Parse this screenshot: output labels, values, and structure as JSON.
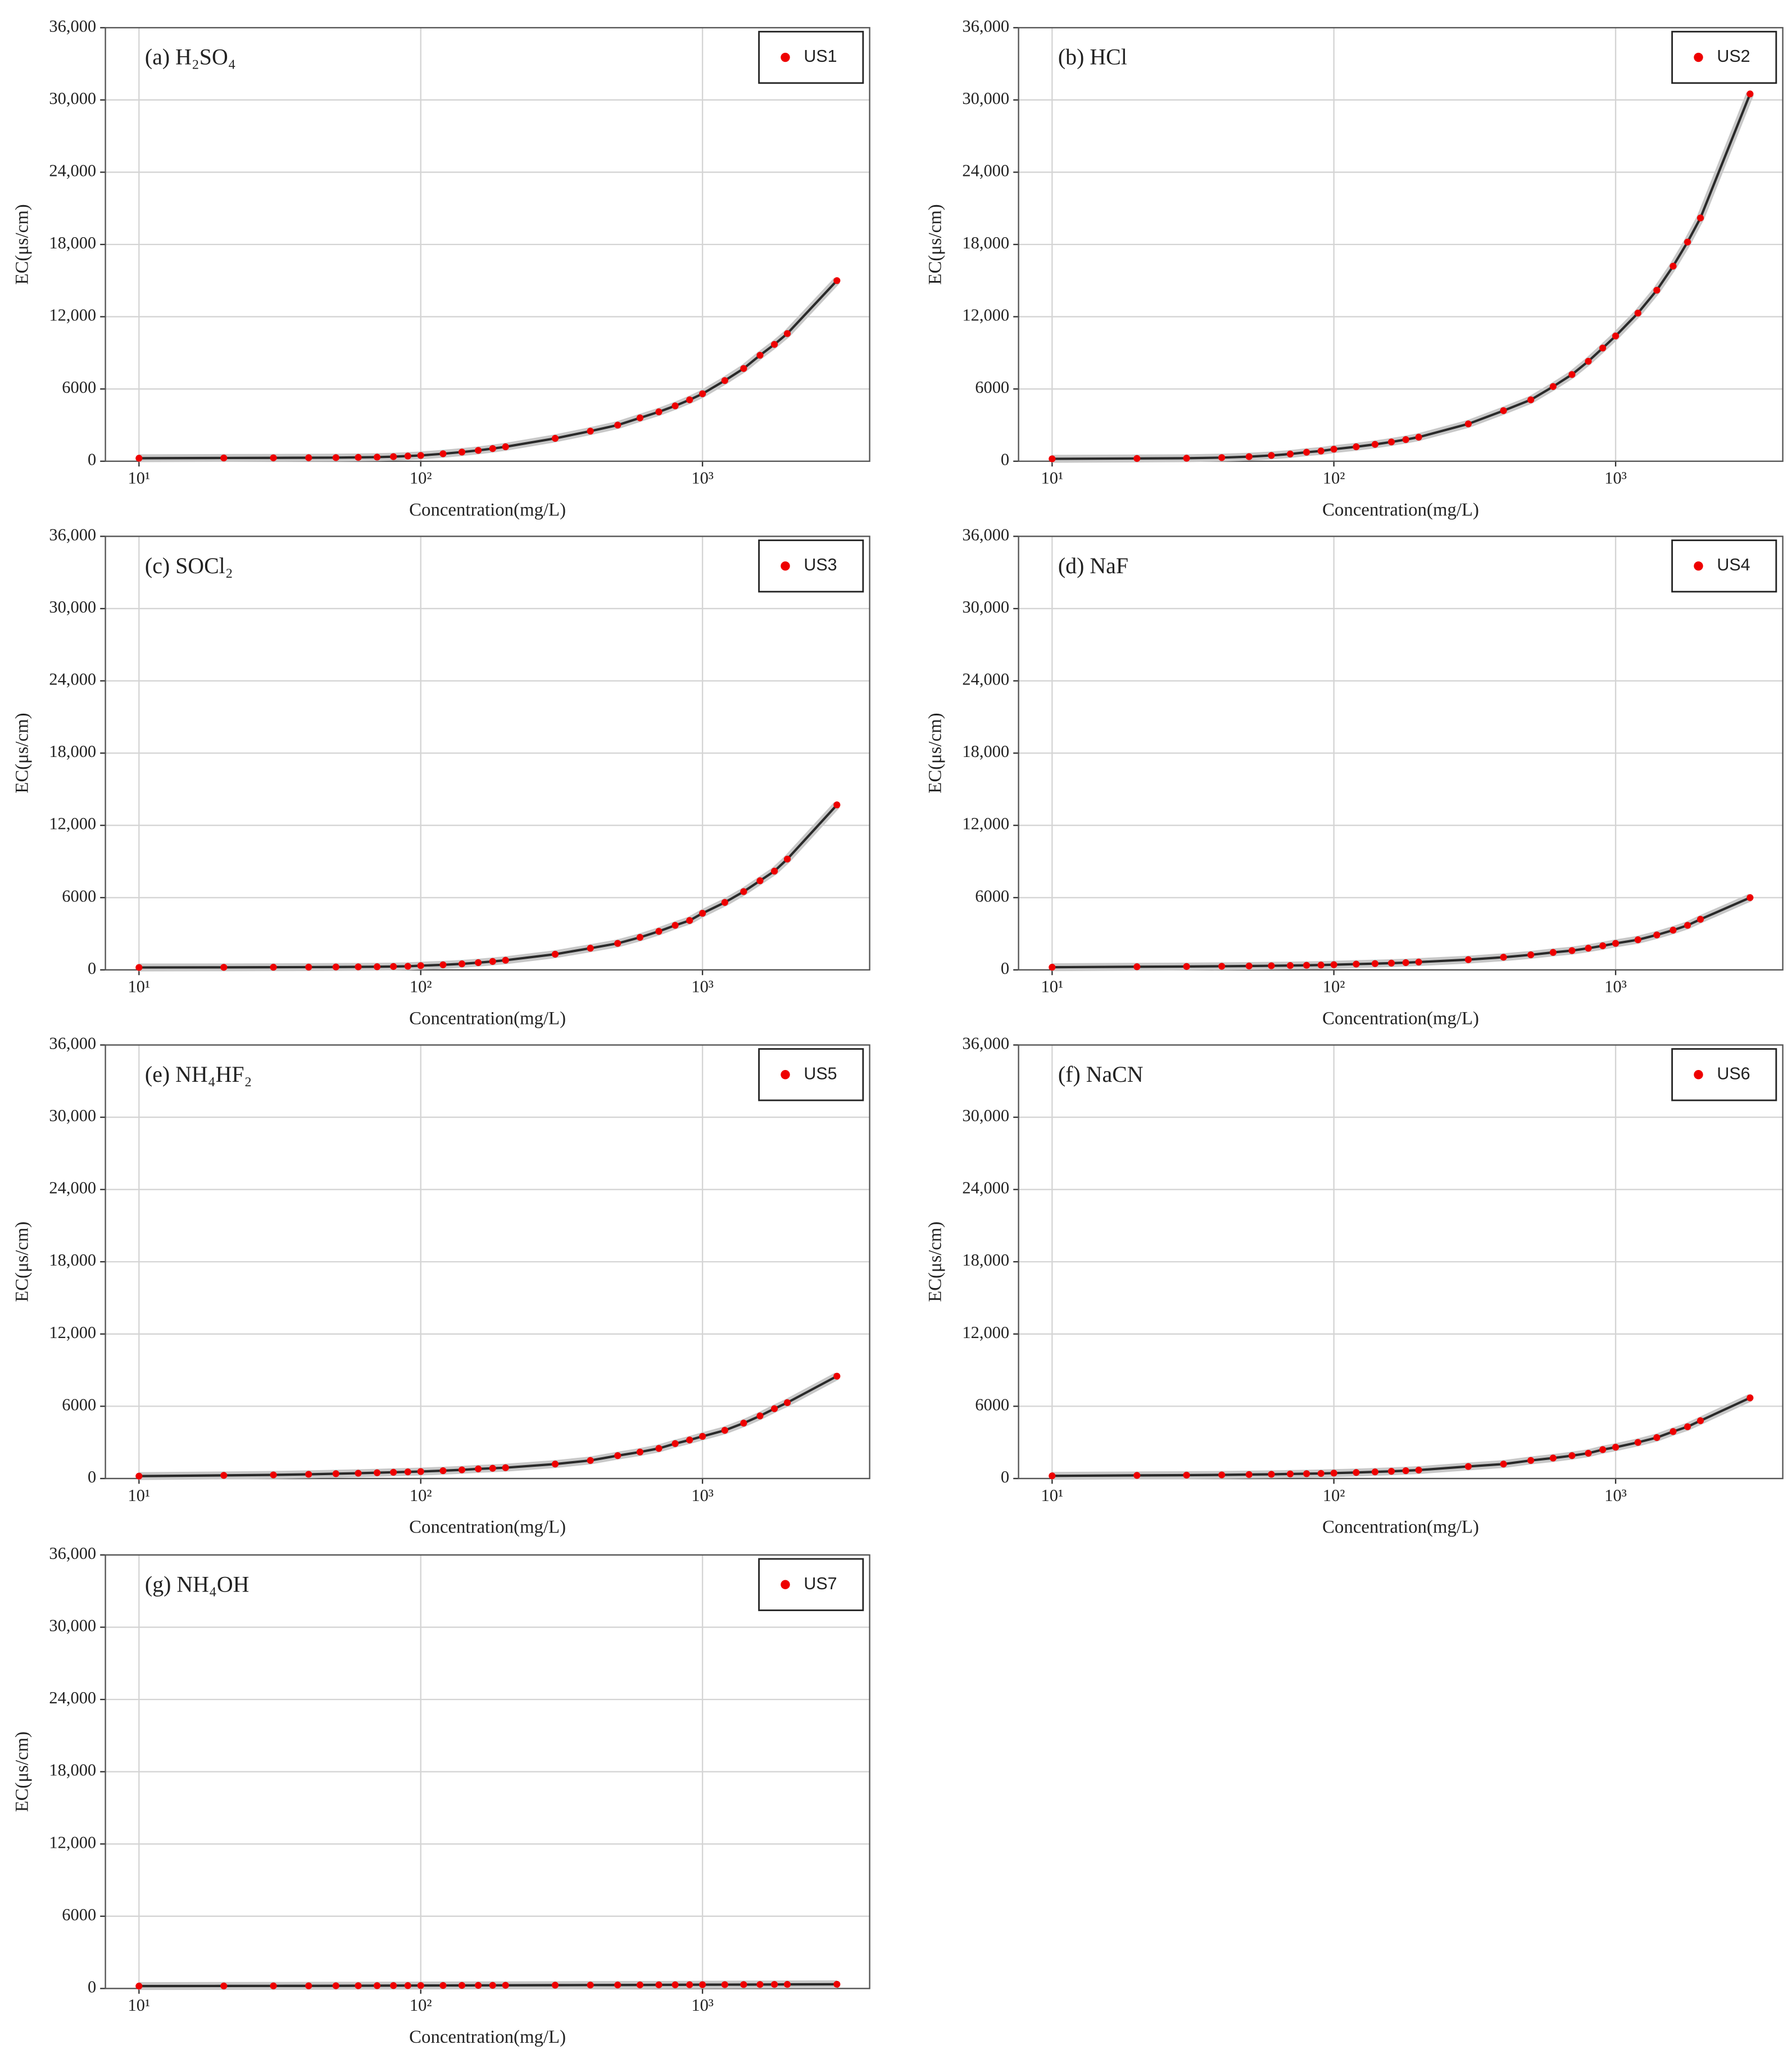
{
  "chart_data": [
    {
      "type": "scatter",
      "title": "(a) H₂SO₄",
      "xlabel": "Concentration(mg/L)",
      "ylabel": "EC(μs/cm)",
      "xscale": "log",
      "grid": true,
      "legend": "upper right",
      "line": true,
      "x": [
        10,
        20,
        30,
        40,
        50,
        60,
        70,
        80,
        90,
        100,
        120,
        140,
        160,
        180,
        200,
        300,
        400,
        500,
        600,
        700,
        800,
        900,
        1000,
        1200,
        1400,
        1600,
        1800,
        2000,
        3000
      ],
      "series": [
        {
          "name": "US1",
          "color": "#ee0000",
          "values": [
            250,
            270,
            280,
            290,
            300,
            320,
            340,
            380,
            430,
            480,
            620,
            760,
            900,
            1050,
            1200,
            1900,
            2500,
            3000,
            3600,
            4100,
            4600,
            5100,
            5600,
            6700,
            7700,
            8800,
            9700,
            10600,
            15000
          ]
        }
      ],
      "xlim": [
        7.6,
        3920
      ],
      "xticks": [
        {
          "value": 10,
          "label": "10¹"
        },
        {
          "value": 100,
          "label": "10²"
        },
        {
          "value": 1000,
          "label": "10³"
        }
      ],
      "ylim": [
        0,
        36000
      ],
      "yticks": [
        0,
        6000,
        {
          "value": 12000,
          "label": "12,000"
        },
        {
          "value": 18000,
          "label": "18,000"
        },
        {
          "value": 24000,
          "label": "24,000"
        },
        {
          "value": 30000,
          "label": "30,000"
        },
        {
          "value": 36000,
          "label": "36,000"
        }
      ]
    },
    {
      "type": "scatter",
      "title": "(b) HCl",
      "xlabel": "Concentration(mg/L)",
      "ylabel": "EC(μs/cm)",
      "xscale": "log",
      "grid": true,
      "legend": "upper right",
      "line": true,
      "x": [
        10,
        20,
        30,
        40,
        50,
        60,
        70,
        80,
        90,
        100,
        120,
        140,
        160,
        180,
        200,
        300,
        400,
        500,
        600,
        700,
        800,
        900,
        1000,
        1200,
        1400,
        1600,
        1800,
        2000,
        3000
      ],
      "series": [
        {
          "name": "US2",
          "color": "#ee0000",
          "values": [
            200,
            230,
            250,
            300,
            380,
            480,
            600,
            750,
            850,
            1000,
            1200,
            1400,
            1600,
            1800,
            2000,
            3100,
            4200,
            5100,
            6200,
            7200,
            8300,
            9400,
            10400,
            12300,
            14200,
            16200,
            18200,
            20200,
            30500
          ]
        }
      ],
      "xlim": [
        7.6,
        3920
      ],
      "xticks": [
        {
          "value": 10,
          "label": "10¹"
        },
        {
          "value": 100,
          "label": "10²"
        },
        {
          "value": 1000,
          "label": "10³"
        }
      ],
      "ylim": [
        0,
        36000
      ],
      "yticks": [
        0,
        6000,
        {
          "value": 12000,
          "label": "12,000"
        },
        {
          "value": 18000,
          "label": "18,000"
        },
        {
          "value": 24000,
          "label": "24,000"
        },
        {
          "value": 30000,
          "label": "30,000"
        },
        {
          "value": 36000,
          "label": "36,000"
        }
      ]
    },
    {
      "type": "scatter",
      "title": "(c) SOCl₂",
      "xlabel": "Concentration(mg/L)",
      "ylabel": "EC(μs/cm)",
      "xscale": "log",
      "grid": true,
      "legend": "upper right",
      "line": true,
      "x": [
        10,
        20,
        30,
        40,
        50,
        60,
        70,
        80,
        90,
        100,
        120,
        140,
        160,
        180,
        200,
        300,
        400,
        500,
        600,
        700,
        800,
        900,
        1000,
        1200,
        1400,
        1600,
        1800,
        2000,
        3000
      ],
      "series": [
        {
          "name": "US3",
          "color": "#ee0000",
          "values": [
            200,
            210,
            220,
            230,
            240,
            250,
            260,
            280,
            300,
            350,
            420,
            500,
            600,
            700,
            800,
            1300,
            1800,
            2200,
            2700,
            3200,
            3700,
            4100,
            4700,
            5600,
            6500,
            7400,
            8200,
            9200,
            13700
          ]
        }
      ],
      "xlim": [
        7.6,
        3920
      ],
      "xticks": [
        {
          "value": 10,
          "label": "10¹"
        },
        {
          "value": 100,
          "label": "10²"
        },
        {
          "value": 1000,
          "label": "10³"
        }
      ],
      "ylim": [
        0,
        36000
      ],
      "yticks": [
        0,
        6000,
        {
          "value": 12000,
          "label": "12,000"
        },
        {
          "value": 18000,
          "label": "18,000"
        },
        {
          "value": 24000,
          "label": "24,000"
        },
        {
          "value": 30000,
          "label": "30,000"
        },
        {
          "value": 36000,
          "label": "36,000"
        }
      ]
    },
    {
      "type": "scatter",
      "title": "(d) NaF",
      "xlabel": "Concentration(mg/L)",
      "ylabel": "EC(μs/cm)",
      "xscale": "log",
      "grid": true,
      "legend": "upper right",
      "line": true,
      "x": [
        10,
        20,
        30,
        40,
        50,
        60,
        70,
        80,
        90,
        100,
        120,
        140,
        160,
        180,
        200,
        300,
        400,
        500,
        600,
        700,
        800,
        900,
        1000,
        1200,
        1400,
        1600,
        1800,
        2000,
        3000
      ],
      "series": [
        {
          "name": "US4",
          "color": "#ee0000",
          "values": [
            220,
            260,
            280,
            300,
            320,
            340,
            360,
            380,
            400,
            430,
            480,
            520,
            560,
            600,
            650,
            850,
            1050,
            1250,
            1450,
            1600,
            1800,
            2000,
            2200,
            2500,
            2900,
            3300,
            3700,
            4200,
            6000
          ]
        }
      ],
      "xlim": [
        7.6,
        3920
      ],
      "xticks": [
        {
          "value": 10,
          "label": "10¹"
        },
        {
          "value": 100,
          "label": "10²"
        },
        {
          "value": 1000,
          "label": "10³"
        }
      ],
      "ylim": [
        0,
        36000
      ],
      "yticks": [
        0,
        6000,
        {
          "value": 12000,
          "label": "12,000"
        },
        {
          "value": 18000,
          "label": "18,000"
        },
        {
          "value": 24000,
          "label": "24,000"
        },
        {
          "value": 30000,
          "label": "30,000"
        },
        {
          "value": 36000,
          "label": "36,000"
        }
      ]
    },
    {
      "type": "scatter",
      "title": "(e) NH₄HF₂",
      "xlabel": "Concentration(mg/L)",
      "ylabel": "EC(μs/cm)",
      "xscale": "log",
      "grid": true,
      "legend": "upper right",
      "line": true,
      "x": [
        10,
        20,
        30,
        40,
        50,
        60,
        70,
        80,
        90,
        100,
        120,
        140,
        160,
        180,
        200,
        300,
        400,
        500,
        600,
        700,
        800,
        900,
        1000,
        1200,
        1400,
        1600,
        1800,
        2000,
        3000
      ],
      "series": [
        {
          "name": "US5",
          "color": "#ee0000",
          "values": [
            200,
            260,
            300,
            350,
            400,
            440,
            480,
            520,
            550,
            580,
            650,
            720,
            800,
            850,
            900,
            1200,
            1500,
            1900,
            2200,
            2500,
            2900,
            3200,
            3500,
            4000,
            4600,
            5200,
            5800,
            6300,
            8500
          ]
        }
      ],
      "xlim": [
        7.6,
        3920
      ],
      "xticks": [
        {
          "value": 10,
          "label": "10¹"
        },
        {
          "value": 100,
          "label": "10²"
        },
        {
          "value": 1000,
          "label": "10³"
        }
      ],
      "ylim": [
        0,
        36000
      ],
      "yticks": [
        0,
        6000,
        {
          "value": 12000,
          "label": "12,000"
        },
        {
          "value": 18000,
          "label": "18,000"
        },
        {
          "value": 24000,
          "label": "24,000"
        },
        {
          "value": 30000,
          "label": "30,000"
        },
        {
          "value": 36000,
          "label": "36,000"
        }
      ]
    },
    {
      "type": "scatter",
      "title": "(f) NaCN",
      "xlabel": "Concentration(mg/L)",
      "ylabel": "EC(μs/cm)",
      "xscale": "log",
      "grid": true,
      "legend": "upper right",
      "line": true,
      "x": [
        10,
        20,
        30,
        40,
        50,
        60,
        70,
        80,
        90,
        100,
        120,
        140,
        160,
        180,
        200,
        300,
        400,
        500,
        600,
        700,
        800,
        900,
        1000,
        1200,
        1400,
        1600,
        1800,
        2000,
        3000
      ],
      "series": [
        {
          "name": "US6",
          "color": "#ee0000",
          "values": [
            220,
            260,
            280,
            300,
            330,
            350,
            380,
            400,
            420,
            450,
            500,
            550,
            600,
            650,
            700,
            1000,
            1200,
            1500,
            1700,
            1900,
            2100,
            2400,
            2600,
            3000,
            3400,
            3900,
            4300,
            4800,
            6700
          ]
        }
      ],
      "xlim": [
        7.6,
        3920
      ],
      "xticks": [
        {
          "value": 10,
          "label": "10¹"
        },
        {
          "value": 100,
          "label": "10²"
        },
        {
          "value": 1000,
          "label": "10³"
        }
      ],
      "ylim": [
        0,
        36000
      ],
      "yticks": [
        0,
        6000,
        {
          "value": 12000,
          "label": "12,000"
        },
        {
          "value": 18000,
          "label": "18,000"
        },
        {
          "value": 24000,
          "label": "24,000"
        },
        {
          "value": 30000,
          "label": "30,000"
        },
        {
          "value": 36000,
          "label": "36,000"
        }
      ]
    },
    {
      "type": "scatter",
      "title": "(g) NH₄OH",
      "xlabel": "Concentration(mg/L)",
      "ylabel": "EC(μs/cm)",
      "xscale": "log",
      "grid": true,
      "legend": "upper right",
      "line": true,
      "x": [
        10,
        20,
        30,
        40,
        50,
        60,
        70,
        80,
        90,
        100,
        120,
        140,
        160,
        180,
        200,
        300,
        400,
        500,
        600,
        700,
        800,
        900,
        1000,
        1200,
        1400,
        1600,
        1800,
        2000,
        3000
      ],
      "series": [
        {
          "name": "US7",
          "color": "#ee0000",
          "values": [
            200,
            210,
            215,
            220,
            225,
            230,
            235,
            240,
            240,
            245,
            250,
            255,
            260,
            262,
            265,
            275,
            285,
            290,
            295,
            300,
            305,
            310,
            315,
            320,
            325,
            330,
            335,
            340,
            350
          ]
        }
      ],
      "xlim": [
        7.6,
        3920
      ],
      "xticks": [
        {
          "value": 10,
          "label": "10¹"
        },
        {
          "value": 100,
          "label": "10²"
        },
        {
          "value": 1000,
          "label": "10³"
        }
      ],
      "ylim": [
        0,
        36000
      ],
      "yticks": [
        0,
        6000,
        {
          "value": 12000,
          "label": "12,000"
        },
        {
          "value": 18000,
          "label": "18,000"
        },
        {
          "value": 24000,
          "label": "24,000"
        },
        {
          "value": 30000,
          "label": "30,000"
        },
        {
          "value": 36000,
          "label": "36,000"
        }
      ]
    }
  ]
}
